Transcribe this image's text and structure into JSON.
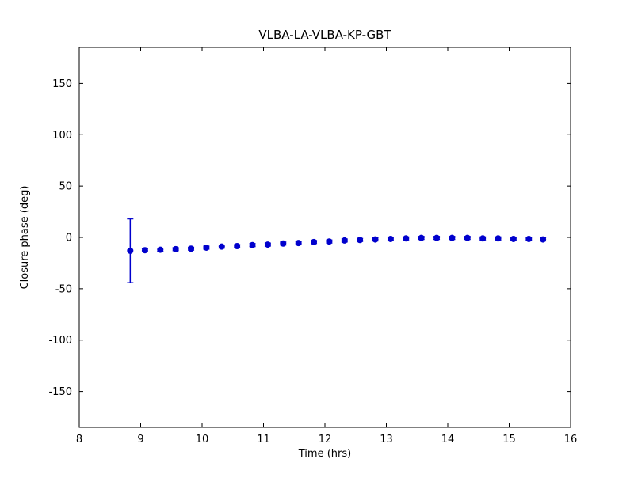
{
  "chart_data": {
    "type": "scatter",
    "title": "VLBA-LA-VLBA-KP-GBT",
    "xlabel": "Time (hrs)",
    "ylabel": "Closure phase (deg)",
    "xlim": [
      8,
      16
    ],
    "ylim": [
      -185,
      185
    ],
    "xticks": [
      8,
      9,
      10,
      11,
      12,
      13,
      14,
      15,
      16
    ],
    "yticks": [
      -150,
      -100,
      -50,
      0,
      50,
      100,
      150
    ],
    "grid": false,
    "legend": "none",
    "marker_color": "#0000cd",
    "axis_color": "#000000",
    "x": [
      8.83,
      9.07,
      9.32,
      9.57,
      9.82,
      10.07,
      10.32,
      10.57,
      10.82,
      11.07,
      11.32,
      11.57,
      11.82,
      12.07,
      12.32,
      12.57,
      12.82,
      13.07,
      13.32,
      13.57,
      13.82,
      14.07,
      14.32,
      14.57,
      14.82,
      15.07,
      15.32,
      15.55
    ],
    "y": [
      -13,
      -12.5,
      -12,
      -11.5,
      -11,
      -10,
      -9,
      -8.5,
      -7.5,
      -7,
      -6,
      -5.5,
      -4.5,
      -4,
      -3,
      -2.5,
      -2,
      -1.5,
      -1,
      -0.5,
      -0.5,
      -0.5,
      -0.5,
      -1,
      -1,
      -1.5,
      -1.5,
      -2
    ],
    "yerr": [
      31,
      1.5,
      1.5,
      1.5,
      1.5,
      1.5,
      1.5,
      1.5,
      1.5,
      1.5,
      1.5,
      1.5,
      1.5,
      1.5,
      1.5,
      1.5,
      1.5,
      1.5,
      1.5,
      1.5,
      1.5,
      1.5,
      1.5,
      1.5,
      1.5,
      1.5,
      1.5,
      1.5
    ]
  }
}
